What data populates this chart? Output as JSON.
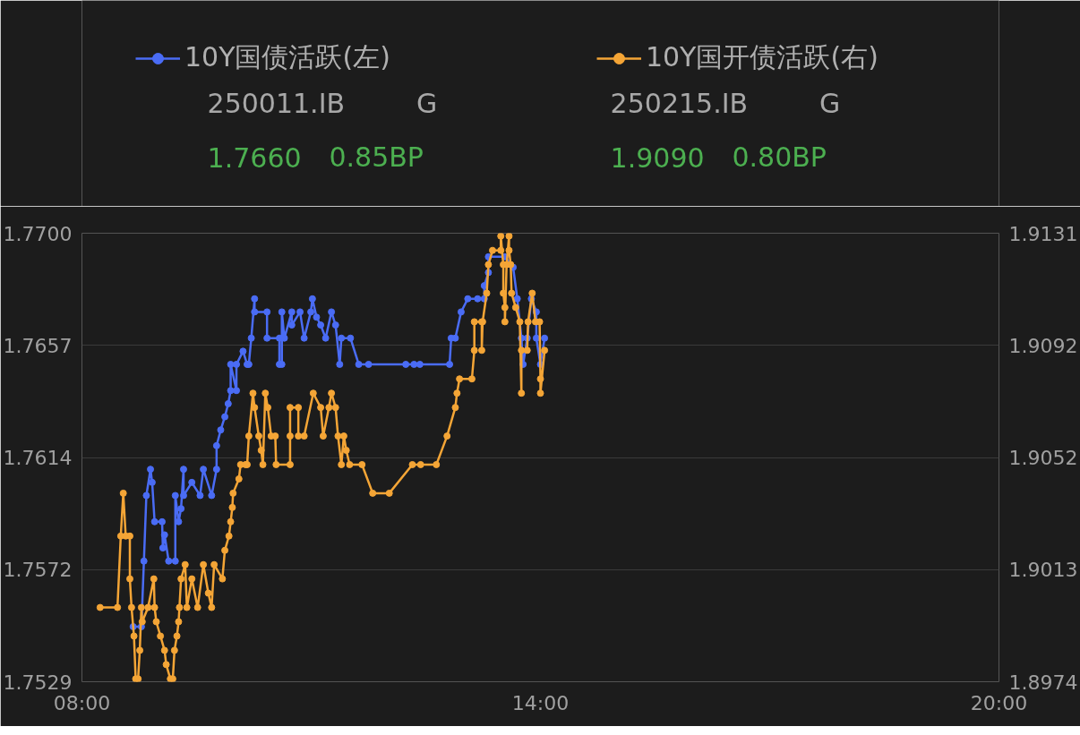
{
  "chart_data": {
    "type": "line",
    "marker": "circle",
    "grid": "y",
    "legend": "top left",
    "xlim": [
      8,
      20
    ],
    "xticks": [
      {
        "value": 8,
        "label": "08:00"
      },
      {
        "value": 14,
        "label": "14:00"
      },
      {
        "value": 20,
        "label": "20:00"
      }
    ],
    "ylim": [
      1.7529,
      1.77
    ],
    "yticks": [
      {
        "value": 1.7529,
        "label": "1.7529"
      },
      {
        "value": 1.757175,
        "label": "1.7572"
      },
      {
        "value": 1.76145,
        "label": "1.7614"
      },
      {
        "value": 1.765725,
        "label": "1.7657"
      },
      {
        "value": 1.77,
        "label": "1.7700"
      }
    ],
    "y2lim": [
      1.8974,
      1.9131
    ],
    "y2ticks": [
      {
        "value": 1.8974,
        "label": "1.8974"
      },
      {
        "value": 1.901325,
        "label": "1.9013"
      },
      {
        "value": 1.90525,
        "label": "1.9052"
      },
      {
        "value": 1.909175,
        "label": "1.9092"
      },
      {
        "value": 1.9131,
        "label": "1.9131"
      }
    ],
    "annotations": [
      "250011.IB",
      "G",
      "1.7660",
      "0.85BP",
      "250215.IB",
      "G",
      "1.9090",
      "0.80BP"
    ],
    "series": [
      {
        "name": "10Y国债活跃(左)",
        "color": "#4a6cf5",
        "x": [
          8.67,
          8.778,
          8.811,
          8.843,
          8.897,
          8.919,
          8.951,
          9.049,
          9.059,
          9.081,
          9.135,
          9.222,
          9.222,
          9.265,
          9.297,
          9.33,
          9.33,
          9.438,
          9.546,
          9.589,
          9.697,
          9.762,
          9.762,
          9.816,
          9.87,
          9.914,
          9.946,
          9.946,
          10.022,
          10.022,
          10.108,
          10.162,
          10.184,
          10.216,
          10.259,
          10.259,
          10.422,
          10.422,
          10.584,
          10.584,
          10.616,
          10.616,
          10.649,
          10.746,
          10.746,
          10.854,
          10.908,
          10.995,
          11.016,
          11.07,
          11.124,
          11.189,
          11.265,
          11.319,
          11.373,
          11.395,
          11.514,
          11.622,
          11.751,
          12.238,
          12.346,
          12.422,
          12.811,
          12.832,
          12.886,
          12.962,
          13.049,
          13.178,
          13.265,
          13.265,
          13.319,
          13.319,
          13.535,
          13.643,
          13.697,
          13.751,
          13.773,
          13.827,
          13.881,
          13.946,
          13.946,
          14.0,
          14.054
        ],
        "values": [
          1.755,
          1.755,
          1.7575,
          1.76,
          1.761,
          1.7605,
          1.759,
          1.759,
          1.758,
          1.7585,
          1.7575,
          1.7575,
          1.76,
          1.759,
          1.7595,
          1.761,
          1.76,
          1.7605,
          1.76,
          1.761,
          1.76,
          1.761,
          1.7619,
          1.7625,
          1.763,
          1.7635,
          1.764,
          1.765,
          1.764,
          1.765,
          1.7655,
          1.765,
          1.765,
          1.766,
          1.7675,
          1.767,
          1.767,
          1.766,
          1.766,
          1.765,
          1.765,
          1.767,
          1.766,
          1.767,
          1.7665,
          1.767,
          1.766,
          1.767,
          1.7675,
          1.7668,
          1.7665,
          1.766,
          1.767,
          1.7665,
          1.765,
          1.766,
          1.766,
          1.765,
          1.765,
          1.765,
          1.765,
          1.765,
          1.765,
          1.766,
          1.766,
          1.767,
          1.7675,
          1.7675,
          1.7675,
          1.768,
          1.7685,
          1.7691,
          1.7691,
          1.7687,
          1.7675,
          1.766,
          1.765,
          1.766,
          1.7675,
          1.767,
          1.766,
          1.765,
          1.766
        ]
      },
      {
        "name": "10Y国开债活跃(右)",
        "color": "#f4a536",
        "axis": "y2",
        "x": [
          8.238,
          8.465,
          8.508,
          8.541,
          8.573,
          8.627,
          8.627,
          8.649,
          8.681,
          8.703,
          8.735,
          8.757,
          8.778,
          8.789,
          8.865,
          8.941,
          8.951,
          8.973,
          9.027,
          9.081,
          9.103,
          9.157,
          9.189,
          9.211,
          9.243,
          9.265,
          9.276,
          9.297,
          9.351,
          9.373,
          9.438,
          9.514,
          9.589,
          9.654,
          9.697,
          9.73,
          9.838,
          9.87,
          9.924,
          9.946,
          9.968,
          9.978,
          10.054,
          10.076,
          10.141,
          10.162,
          10.184,
          10.238,
          10.259,
          10.314,
          10.346,
          10.368,
          10.4,
          10.432,
          10.476,
          10.53,
          10.541,
          10.724,
          10.724,
          10.724,
          10.832,
          10.832,
          10.908,
          11.027,
          11.124,
          11.157,
          11.232,
          11.265,
          11.319,
          11.351,
          11.395,
          11.427,
          11.459,
          11.503,
          11.665,
          11.805,
          12.022,
          12.324,
          12.432,
          12.638,
          12.778,
          12.886,
          12.908,
          12.941,
          13.103,
          13.135,
          13.135,
          13.232,
          13.232,
          13.243,
          13.297,
          13.319,
          13.373,
          13.481,
          13.481,
          13.514,
          13.514,
          13.535,
          13.535,
          13.557,
          13.589,
          13.589,
          13.611,
          13.622,
          13.676,
          13.73,
          13.751,
          13.751,
          13.827,
          13.838,
          13.892,
          13.935,
          13.989,
          14.0,
          14.0,
          14.054
        ],
        "values": [
          1.9,
          1.9,
          1.9025,
          1.904,
          1.9025,
          1.9025,
          1.901,
          1.9,
          1.899,
          1.8975,
          1.8975,
          1.8985,
          1.9,
          1.8995,
          1.9,
          1.901,
          1.9,
          1.8995,
          1.899,
          1.8985,
          1.898,
          1.8975,
          1.8975,
          1.8985,
          1.899,
          1.8995,
          1.9,
          1.901,
          1.9015,
          1.9,
          1.901,
          1.9,
          1.9015,
          1.9005,
          1.9,
          1.9015,
          1.901,
          1.902,
          1.9025,
          1.903,
          1.9035,
          1.904,
          1.9045,
          1.905,
          1.905,
          1.905,
          1.906,
          1.9075,
          1.907,
          1.906,
          1.9055,
          1.905,
          1.9075,
          1.907,
          1.906,
          1.906,
          1.905,
          1.905,
          1.906,
          1.907,
          1.907,
          1.906,
          1.906,
          1.9075,
          1.907,
          1.906,
          1.907,
          1.9075,
          1.907,
          1.906,
          1.905,
          1.906,
          1.9055,
          1.905,
          1.905,
          1.904,
          1.904,
          1.905,
          1.905,
          1.905,
          1.906,
          1.907,
          1.9075,
          1.908,
          1.908,
          1.909,
          1.91,
          1.91,
          1.909,
          1.91,
          1.911,
          1.912,
          1.9125,
          1.9125,
          1.913,
          1.912,
          1.911,
          1.9105,
          1.91,
          1.912,
          1.913,
          1.9125,
          1.912,
          1.911,
          1.9105,
          1.91,
          1.9075,
          1.909,
          1.909,
          1.91,
          1.911,
          1.91,
          1.91,
          1.908,
          1.9075,
          1.909
        ]
      }
    ]
  }
}
